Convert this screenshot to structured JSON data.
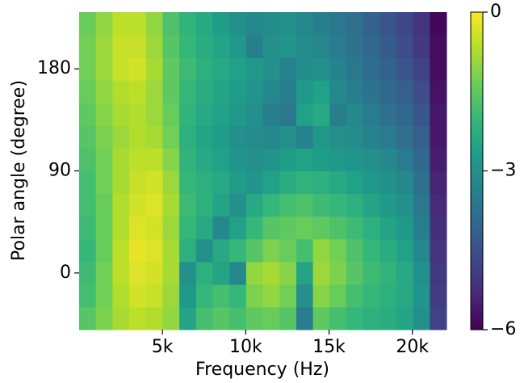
{
  "chart_data": {
    "type": "heatmap",
    "x_label": "Frequency (Hz)",
    "y_label": "Polar angle (degree)",
    "cmap": "viridis",
    "xbins": [
      0,
      1002,
      2005,
      3007,
      4009,
      5011,
      6014,
      7016,
      8018,
      9020,
      10023,
      11025,
      12027,
      13030,
      14032,
      15034,
      16036,
      17039,
      18041,
      19043,
      20045,
      21048,
      22050
    ],
    "ybins": [
      -50,
      -30,
      -10,
      10,
      30,
      50,
      70,
      90,
      110,
      130,
      150,
      170,
      190,
      210,
      230
    ],
    "xlim": [
      0,
      22050
    ],
    "ylim": [
      -50,
      230
    ],
    "xticks": [
      {
        "value": 5000,
        "label": "5k"
      },
      {
        "value": 10000,
        "label": "10k"
      },
      {
        "value": 15000,
        "label": "15k"
      },
      {
        "value": 20000,
        "label": "20k"
      }
    ],
    "yticks": [
      0,
      90,
      180
    ],
    "clim": [
      -6,
      0
    ],
    "cticks": [
      0,
      {
        "value": -3,
        "label": "−3"
      },
      {
        "value": -6,
        "label": "−6"
      }
    ],
    "z": [
      [
        -1.6,
        -1.2,
        -0.8,
        -0.6,
        -0.7,
        -1.0,
        -2.5,
        -1.8,
        -1.6,
        -1.8,
        -1.5,
        -1.4,
        -1.6,
        -3.5,
        -1.5,
        -1.8,
        -2.0,
        -2.2,
        -2.3,
        -2.5,
        -3.0,
        -4.8
      ],
      [
        -1.8,
        -1.3,
        -0.7,
        -0.4,
        -0.5,
        -0.9,
        -2.8,
        -2.0,
        -1.8,
        -2.0,
        -1.2,
        -1.0,
        -1.3,
        -3.0,
        -1.1,
        -1.4,
        -1.8,
        -2.0,
        -2.2,
        -2.4,
        -2.9,
        -4.9
      ],
      [
        -1.9,
        -1.3,
        -0.6,
        -0.3,
        -0.4,
        -0.8,
        -3.0,
        -2.2,
        -2.5,
        -3.2,
        -1.0,
        -0.8,
        -1.1,
        -2.5,
        -0.9,
        -1.2,
        -1.6,
        -1.9,
        -2.1,
        -2.4,
        -3.0,
        -5.0
      ],
      [
        -2.0,
        -1.4,
        -0.6,
        -0.2,
        -0.3,
        -0.8,
        -2.2,
        -3.0,
        -2.4,
        -2.0,
        -1.6,
        -1.2,
        -1.4,
        -1.8,
        -1.0,
        -1.3,
        -1.7,
        -2.0,
        -2.3,
        -2.6,
        -3.2,
        -5.1
      ],
      [
        -1.9,
        -1.4,
        -0.7,
        -0.3,
        -0.4,
        -0.9,
        -2.0,
        -2.4,
        -3.2,
        -2.6,
        -2.0,
        -1.6,
        -1.5,
        -1.4,
        -1.5,
        -1.7,
        -1.9,
        -2.2,
        -2.5,
        -2.8,
        -3.4,
        -5.2
      ],
      [
        -1.8,
        -1.4,
        -0.7,
        -0.4,
        -0.3,
        -0.8,
        -1.9,
        -2.2,
        -2.5,
        -3.0,
        -2.4,
        -2.0,
        -1.8,
        -1.7,
        -1.9,
        -2.0,
        -2.2,
        -2.5,
        -2.8,
        -3.0,
        -3.6,
        -5.3
      ],
      [
        -1.8,
        -1.3,
        -0.8,
        -0.5,
        -0.4,
        -0.9,
        -2.0,
        -2.2,
        -2.4,
        -2.7,
        -2.9,
        -2.6,
        -2.3,
        -2.1,
        -2.2,
        -2.4,
        -2.6,
        -2.8,
        -3.0,
        -3.2,
        -3.8,
        -5.4
      ],
      [
        -1.7,
        -1.3,
        -0.8,
        -0.6,
        -0.6,
        -1.1,
        -2.1,
        -2.4,
        -2.6,
        -2.9,
        -3.0,
        -2.9,
        -2.7,
        -2.6,
        -2.7,
        -2.8,
        -2.9,
        -3.0,
        -3.2,
        -3.5,
        -4.0,
        -5.5
      ],
      [
        -1.6,
        -1.2,
        -0.9,
        -0.7,
        -0.8,
        -1.3,
        -2.2,
        -2.5,
        -2.7,
        -3.0,
        -3.1,
        -3.2,
        -3.0,
        -3.3,
        -2.8,
        -3.0,
        -3.1,
        -3.3,
        -3.5,
        -3.8,
        -4.2,
        -5.6
      ],
      [
        -1.5,
        -1.1,
        -0.8,
        -0.7,
        -0.9,
        -1.4,
        -2.1,
        -2.4,
        -2.6,
        -2.8,
        -3.0,
        -3.4,
        -3.6,
        -2.6,
        -2.4,
        -3.4,
        -3.2,
        -3.5,
        -3.8,
        -4.0,
        -4.4,
        -5.6
      ],
      [
        -1.4,
        -1.0,
        -0.7,
        -0.6,
        -0.9,
        -1.5,
        -2.0,
        -2.3,
        -2.5,
        -2.7,
        -2.9,
        -3.2,
        -3.4,
        -2.8,
        -2.6,
        -3.2,
        -3.4,
        -3.7,
        -4.0,
        -4.2,
        -4.6,
        -5.7
      ],
      [
        -1.3,
        -0.9,
        -0.5,
        -0.4,
        -0.8,
        -1.5,
        -1.9,
        -2.2,
        -2.4,
        -2.6,
        -2.8,
        -3.0,
        -3.3,
        -3.1,
        -3.0,
        -3.3,
        -3.6,
        -3.9,
        -4.1,
        -4.4,
        -4.8,
        -5.8
      ],
      [
        -1.3,
        -0.9,
        -0.5,
        -0.5,
        -0.9,
        -1.6,
        -2.0,
        -2.3,
        -2.5,
        -2.8,
        -3.4,
        -3.0,
        -2.9,
        -3.1,
        -3.2,
        -3.5,
        -3.7,
        -4.0,
        -4.3,
        -4.6,
        -5.0,
        -5.8
      ],
      [
        -1.4,
        -1.0,
        -0.6,
        -0.6,
        -1.0,
        -1.7,
        -2.1,
        -2.4,
        -2.7,
        -3.0,
        -3.2,
        -3.1,
        -3.0,
        -3.2,
        -3.4,
        -3.6,
        -3.8,
        -4.1,
        -4.4,
        -4.7,
        -5.1,
        -5.9
      ]
    ]
  }
}
